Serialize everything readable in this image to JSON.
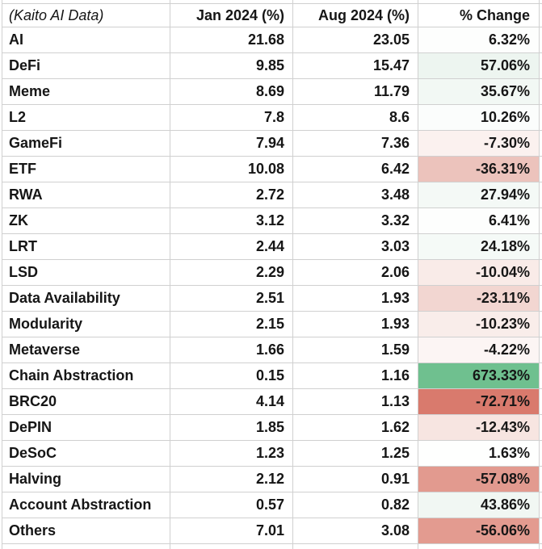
{
  "table": {
    "headers": [
      "(Kaito AI Data)",
      "Jan 2024 (%)",
      "Aug 2024 (%)",
      "% Change"
    ],
    "rows": [
      {
        "label": "AI",
        "jan": "21.68",
        "aug": "23.05",
        "change": "6.32%",
        "change_bg": "#FDFEFD"
      },
      {
        "label": "DeFi",
        "jan": "9.85",
        "aug": "15.47",
        "change": "57.06%",
        "change_bg": "#EDF5F0"
      },
      {
        "label": "Meme",
        "jan": "8.69",
        "aug": "11.79",
        "change": "35.67%",
        "change_bg": "#F2F8F4"
      },
      {
        "label": "L2",
        "jan": "7.8",
        "aug": "8.6",
        "change": "10.26%",
        "change_bg": "#FBFDFC"
      },
      {
        "label": "GameFi",
        "jan": "7.94",
        "aug": "7.36",
        "change": "-7.30%",
        "change_bg": "#FBF1EF"
      },
      {
        "label": "ETF",
        "jan": "10.08",
        "aug": "6.42",
        "change": "-36.31%",
        "change_bg": "#ECC3BC"
      },
      {
        "label": "RWA",
        "jan": "2.72",
        "aug": "3.48",
        "change": "27.94%",
        "change_bg": "#F4F9F6"
      },
      {
        "label": "ZK",
        "jan": "3.12",
        "aug": "3.32",
        "change": "6.41%",
        "change_bg": "#FDFEFD"
      },
      {
        "label": "LRT",
        "jan": "2.44",
        "aug": "3.03",
        "change": "24.18%",
        "change_bg": "#F5FAF7"
      },
      {
        "label": "LSD",
        "jan": "2.29",
        "aug": "2.06",
        "change": "-10.04%",
        "change_bg": "#F9EBE8"
      },
      {
        "label": "Data Availability",
        "jan": "2.51",
        "aug": "1.93",
        "change": "-23.11%",
        "change_bg": "#F2D6D1"
      },
      {
        "label": "Modularity",
        "jan": "2.15",
        "aug": "1.93",
        "change": "-10.23%",
        "change_bg": "#F9EDEA"
      },
      {
        "label": "Metaverse",
        "jan": "1.66",
        "aug": "1.59",
        "change": "-4.22%",
        "change_bg": "#FCF5F4"
      },
      {
        "label": "Chain Abstraction",
        "jan": "0.15",
        "aug": "1.16",
        "change": "673.33%",
        "change_bg": "#6FC08F"
      },
      {
        "label": "BRC20",
        "jan": "4.14",
        "aug": "1.13",
        "change": "-72.71%",
        "change_bg": "#D97A6D"
      },
      {
        "label": "DePIN",
        "jan": "1.85",
        "aug": "1.62",
        "change": "-12.43%",
        "change_bg": "#F7E5E1"
      },
      {
        "label": "DeSoC",
        "jan": "1.23",
        "aug": "1.25",
        "change": "1.63%",
        "change_bg": "#FEFFFE"
      },
      {
        "label": "Halving",
        "jan": "2.12",
        "aug": "0.91",
        "change": "-57.08%",
        "change_bg": "#E29A8F"
      },
      {
        "label": "Account Abstraction",
        "jan": "0.57",
        "aug": "0.82",
        "change": "43.86%",
        "change_bg": "#F1F7F3"
      },
      {
        "label": "Others",
        "jan": "7.01",
        "aug": "3.08",
        "change": "-56.06%",
        "change_bg": "#E39B90"
      }
    ]
  },
  "colors": {
    "grid_line": "#D0D0D0",
    "text": "#161616",
    "positive_max_fill": "#6FC08F",
    "negative_max_fill": "#D97A6D",
    "neutral_fill": "#FFFFFF"
  },
  "chart_data": {
    "type": "table",
    "title": "(Kaito AI Data)",
    "categories": [
      "AI",
      "DeFi",
      "Meme",
      "L2",
      "GameFi",
      "ETF",
      "RWA",
      "ZK",
      "LRT",
      "LSD",
      "Data Availability",
      "Modularity",
      "Metaverse",
      "Chain Abstraction",
      "BRC20",
      "DePIN",
      "DeSoC",
      "Halving",
      "Account Abstraction",
      "Others"
    ],
    "series": [
      {
        "name": "Jan 2024 (%)",
        "values": [
          21.68,
          9.85,
          8.69,
          7.8,
          7.94,
          10.08,
          2.72,
          3.12,
          2.44,
          2.29,
          2.51,
          2.15,
          1.66,
          0.15,
          4.14,
          1.85,
          1.23,
          2.12,
          0.57,
          7.01
        ]
      },
      {
        "name": "Aug 2024 (%)",
        "values": [
          23.05,
          15.47,
          11.79,
          8.6,
          7.36,
          6.42,
          3.48,
          3.32,
          3.03,
          2.06,
          1.93,
          1.93,
          1.59,
          1.16,
          1.13,
          1.62,
          1.25,
          0.91,
          0.82,
          3.08
        ]
      },
      {
        "name": "% Change",
        "values": [
          6.32,
          57.06,
          35.67,
          10.26,
          -7.3,
          -36.31,
          27.94,
          6.41,
          24.18,
          -10.04,
          -23.11,
          -10.23,
          -4.22,
          673.33,
          -72.71,
          -12.43,
          1.63,
          -57.08,
          43.86,
          -56.06
        ]
      }
    ],
    "layout_hints": {
      "conditional_formatting_column": "% Change",
      "color_scale": "red (min -72.71) to white (0) to green (max 673.33)"
    }
  }
}
